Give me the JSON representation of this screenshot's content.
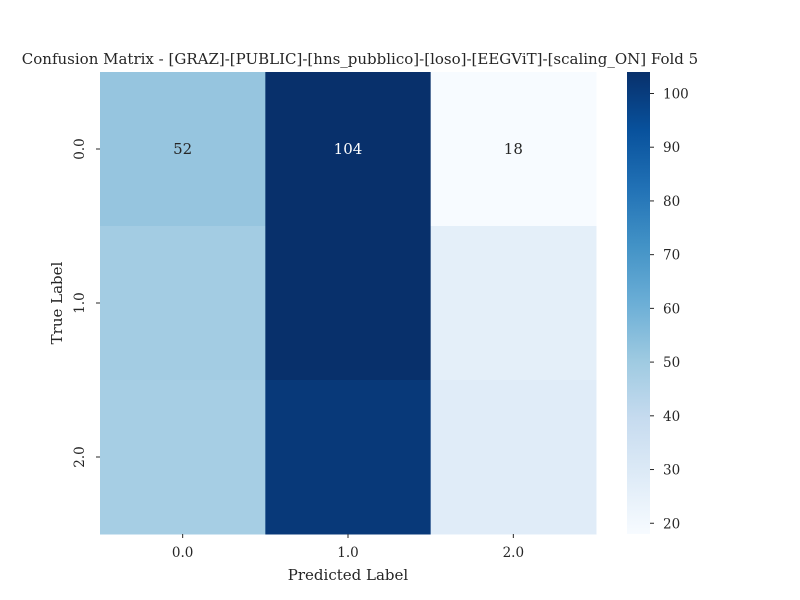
{
  "chart_data": {
    "type": "heatmap",
    "title": "Confusion Matrix - [GRAZ]-[PUBLIC]-[hns_pubblico]-[loso]-[EEGViT]-[scaling_ON] Fold 5",
    "xlabel": "Predicted Label",
    "ylabel": "True Label",
    "x_categories": [
      "0.0",
      "1.0",
      "2.0"
    ],
    "y_categories": [
      "0.0",
      "1.0",
      "2.0"
    ],
    "values": [
      [
        52,
        104,
        18
      ],
      [
        49,
        104,
        26
      ],
      [
        48,
        101,
        28
      ]
    ],
    "annotations_visible": [
      [
        true,
        true,
        true
      ],
      [
        false,
        false,
        false
      ],
      [
        false,
        false,
        false
      ]
    ],
    "colormap": "Blues",
    "vmin": 18,
    "vmax": 104,
    "colorbar_ticks": [
      20,
      30,
      40,
      50,
      60,
      70,
      80,
      90,
      100
    ],
    "grid": false
  }
}
